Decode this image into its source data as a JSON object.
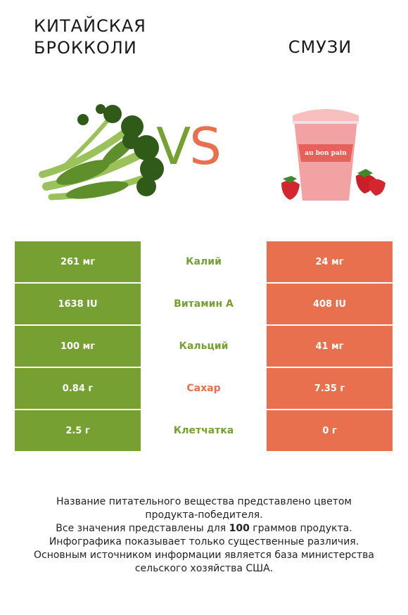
{
  "left_title": "КИТАЙСКАЯ\nБРОККОЛИ",
  "right_title": "СМУЗИ",
  "vs": {
    "v": "V",
    "s": "S"
  },
  "colors": {
    "left": "#76a032",
    "right": "#e8704f"
  },
  "rows": [
    {
      "left": "261 мг",
      "nutrient": "Калий",
      "right": "24 мг",
      "winner": "left"
    },
    {
      "left": "1638 IU",
      "nutrient": "Витамин A",
      "right": "408 IU",
      "winner": "left"
    },
    {
      "left": "100 мг",
      "nutrient": "Кальций",
      "right": "41 мг",
      "winner": "left"
    },
    {
      "left": "0.84 г",
      "nutrient": "Сахар",
      "right": "7.35 г",
      "winner": "right"
    },
    {
      "left": "2.5 г",
      "nutrient": "Клетчатка",
      "right": "0 г",
      "winner": "left"
    }
  ],
  "footer": {
    "line1": "Название питательного вещества представлено цветом",
    "line2": "продукта-победителя.",
    "line3_pre": "Все значения представлены для ",
    "line3_bold": "100",
    "line3_post": " граммов продукта.",
    "line4": "Инфографика показывает только существенные различия.",
    "line5": "Основным источником информации является база министерства",
    "line6": "сельского хозяйства США."
  },
  "cup_brand": "au bon pain"
}
